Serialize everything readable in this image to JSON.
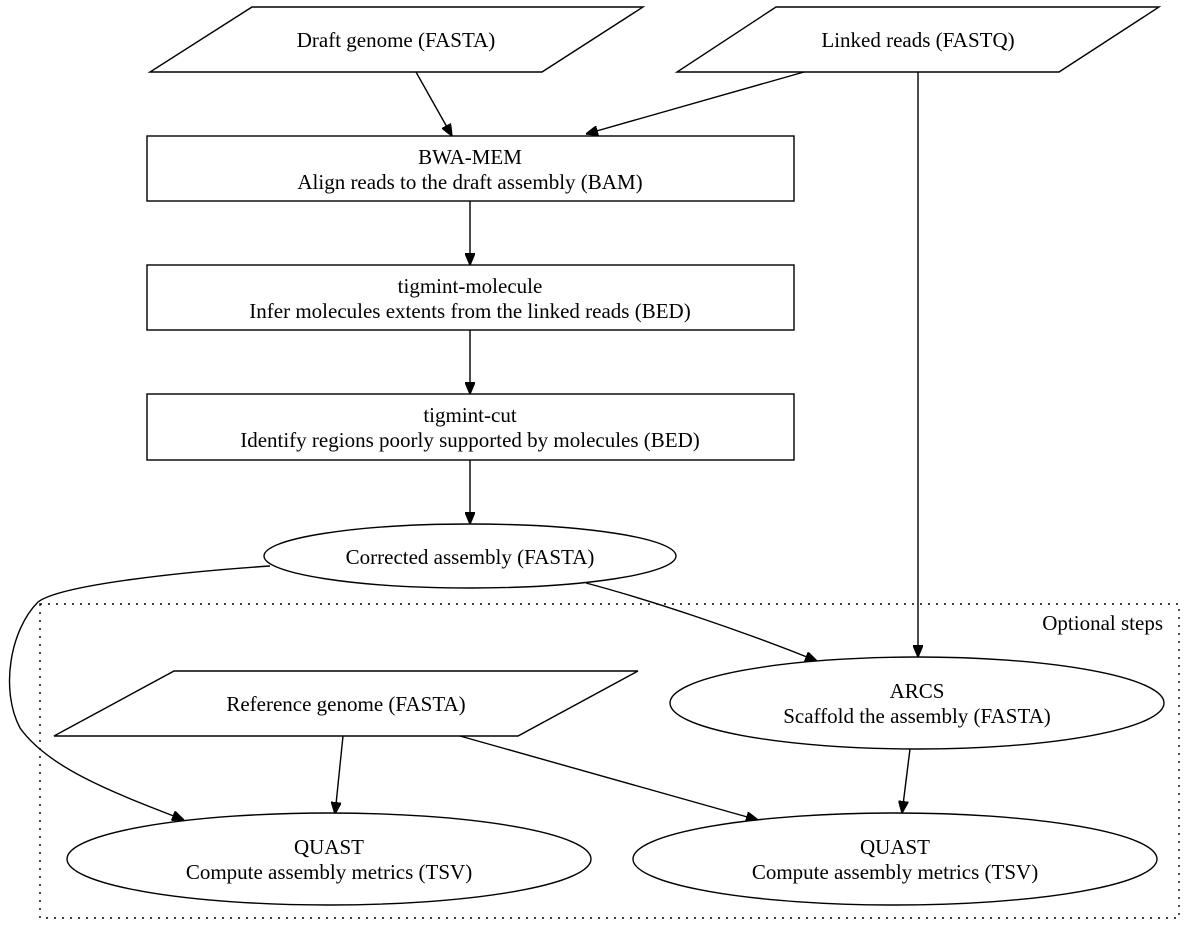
{
  "cluster": {
    "label": "Optional steps"
  },
  "nodes": {
    "draft_genome": {
      "label": "Draft genome (FASTA)"
    },
    "linked_reads": {
      "label": "Linked reads (FASTQ)"
    },
    "bwa_mem": {
      "title": "BWA-MEM",
      "desc": "Align reads to the draft assembly (BAM)"
    },
    "tigmint_molecule": {
      "title": "tigmint-molecule",
      "desc": "Infer molecules extents from the linked reads (BED)"
    },
    "tigmint_cut": {
      "title": "tigmint-cut",
      "desc": "Identify regions poorly supported by molecules (BED)"
    },
    "corrected_assembly": {
      "label": "Corrected assembly (FASTA)"
    },
    "reference_genome": {
      "label": "Reference genome (FASTA)"
    },
    "arcs": {
      "title": "ARCS",
      "desc": "Scaffold the assembly (FASTA)"
    },
    "quast_left": {
      "title": "QUAST",
      "desc": "Compute assembly metrics (TSV)"
    },
    "quast_right": {
      "title": "QUAST",
      "desc": "Compute assembly metrics (TSV)"
    }
  }
}
